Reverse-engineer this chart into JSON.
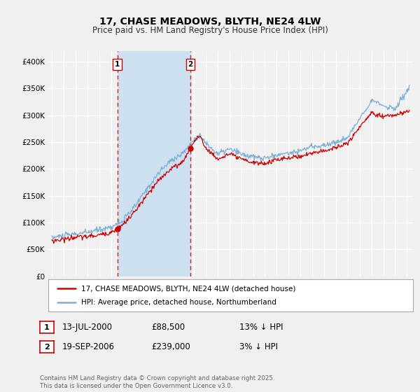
{
  "title": "17, CHASE MEADOWS, BLYTH, NE24 4LW",
  "subtitle": "Price paid vs. HM Land Registry's House Price Index (HPI)",
  "legend_line1": "17, CHASE MEADOWS, BLYTH, NE24 4LW (detached house)",
  "legend_line2": "HPI: Average price, detached house, Northumberland",
  "transaction1_date": "13-JUL-2000",
  "transaction1_price": "£88,500",
  "transaction1_hpi": "13% ↓ HPI",
  "transaction1_year": 2000.53,
  "transaction2_date": "19-SEP-2006",
  "transaction2_price": "£239,000",
  "transaction2_hpi": "3% ↓ HPI",
  "transaction2_year": 2006.72,
  "price_color": "#cc0000",
  "hpi_color": "#7bafd4",
  "shaded_color": "#cce0f0",
  "bg_color": "#f0f0f0",
  "footer": "Contains HM Land Registry data © Crown copyright and database right 2025.\nThis data is licensed under the Open Government Licence v3.0.",
  "ylim": [
    0,
    420000
  ],
  "yticks": [
    0,
    50000,
    100000,
    150000,
    200000,
    250000,
    300000,
    350000,
    400000
  ],
  "xlim_start": 1994.7,
  "xlim_end": 2025.5,
  "transaction1_price_val": 88500,
  "transaction2_price_val": 239000
}
